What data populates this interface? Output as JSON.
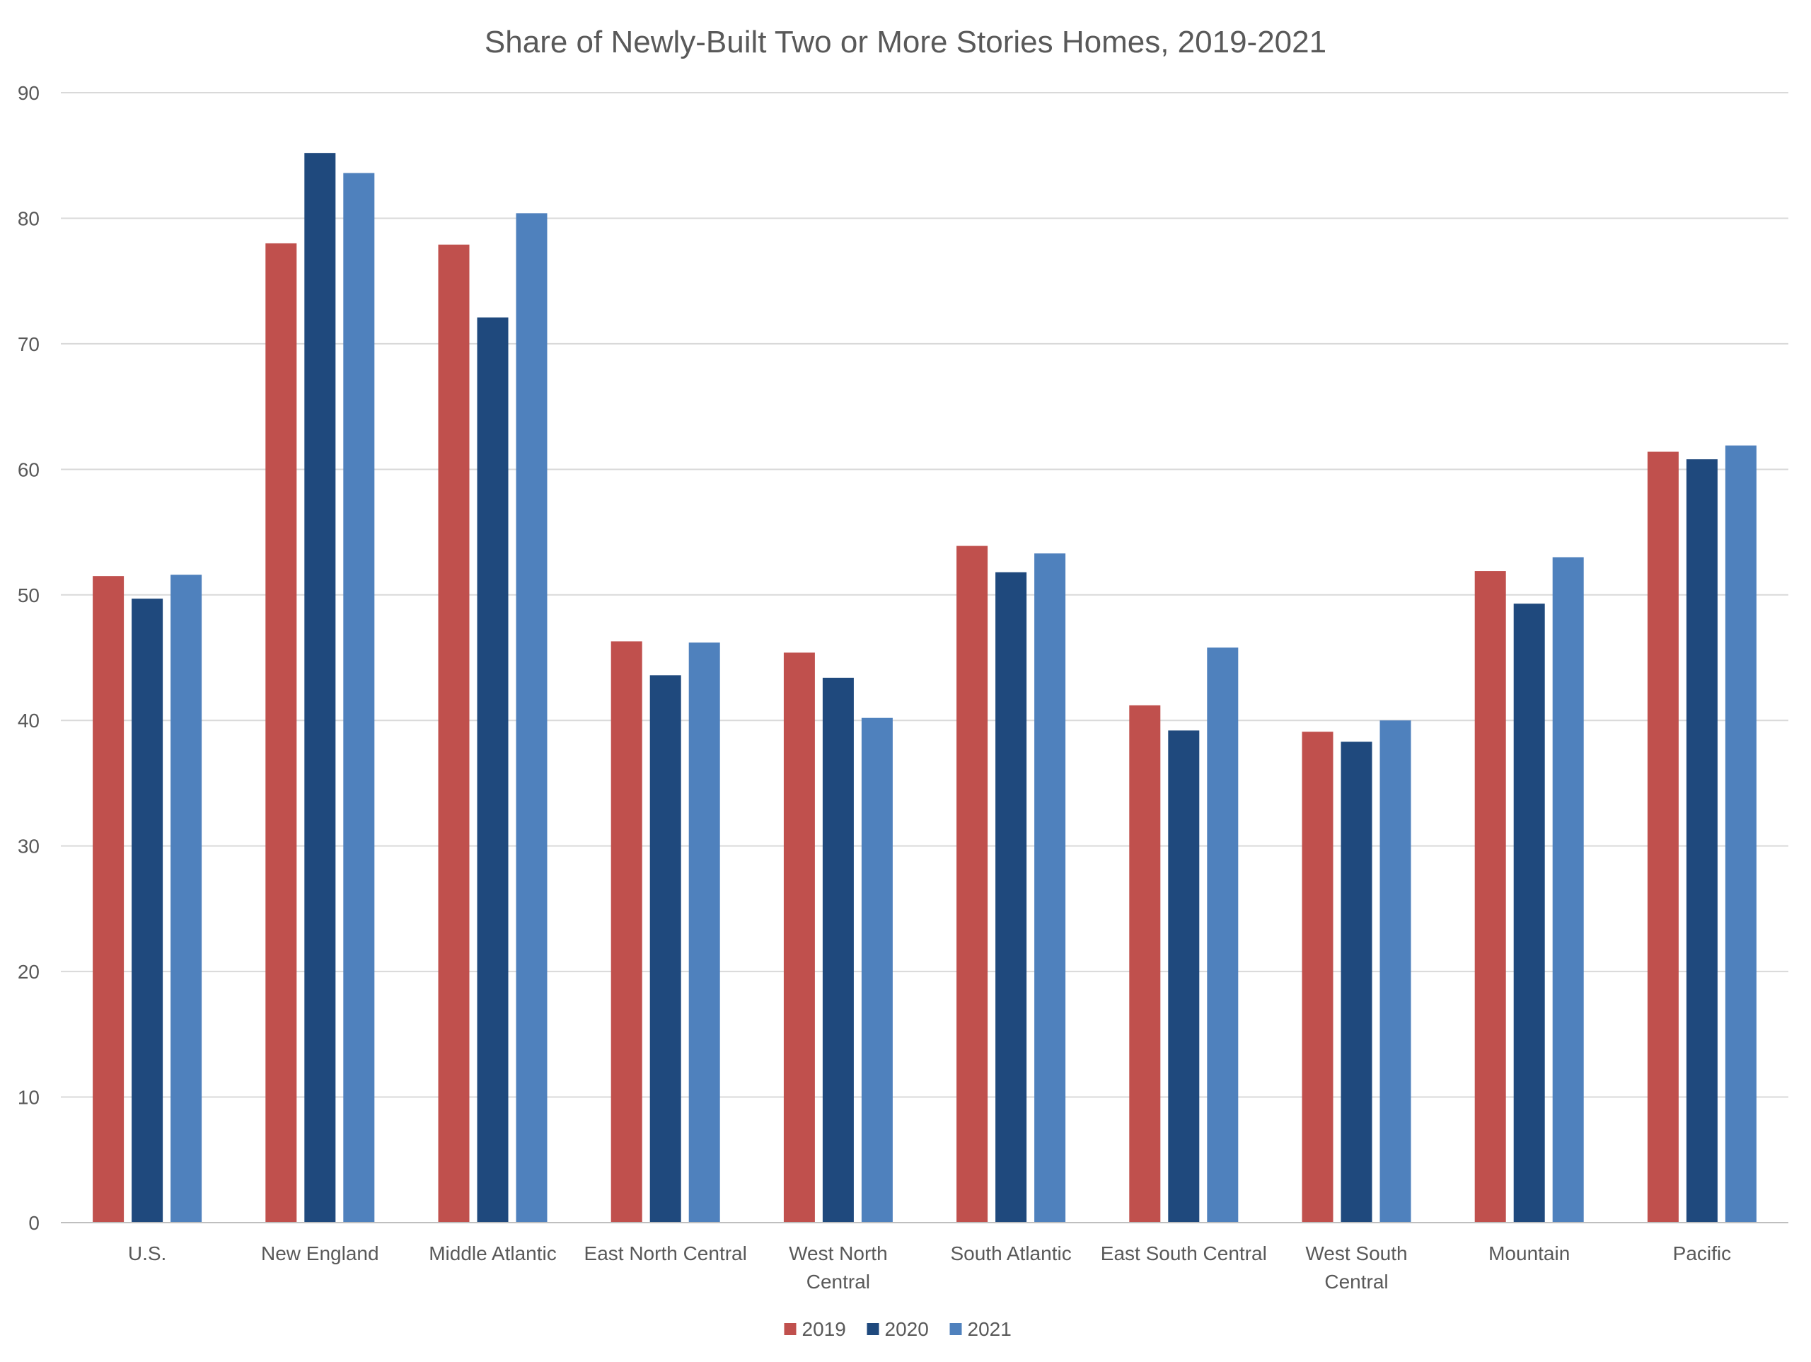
{
  "chart_data": {
    "type": "bar",
    "title": "Share of Newly-Built Two or More Stories Homes, 2019-2021",
    "xlabel": "",
    "ylabel": "",
    "ylim": [
      0,
      90
    ],
    "yticks": [
      0,
      10,
      20,
      30,
      40,
      50,
      60,
      70,
      80,
      90
    ],
    "grid": true,
    "legend_position": "bottom",
    "categories": [
      "U.S.",
      "New England",
      "Middle Atlantic",
      "East North Central",
      "West North Central",
      "South Atlantic",
      "East South Central",
      "West South Central",
      "Mountain",
      "Pacific"
    ],
    "series": [
      {
        "name": "2019",
        "color": "#c0504d",
        "values": [
          51.5,
          78.0,
          77.9,
          46.3,
          45.4,
          53.9,
          41.2,
          39.1,
          51.9,
          61.4
        ]
      },
      {
        "name": "2020",
        "color": "#1f497d",
        "values": [
          49.7,
          85.2,
          72.1,
          43.6,
          43.4,
          51.8,
          39.2,
          38.3,
          49.3,
          60.8
        ]
      },
      {
        "name": "2021",
        "color": "#4f81bd",
        "values": [
          51.6,
          83.6,
          80.4,
          46.2,
          40.2,
          53.3,
          45.8,
          40.0,
          53.0,
          61.9
        ]
      }
    ]
  }
}
